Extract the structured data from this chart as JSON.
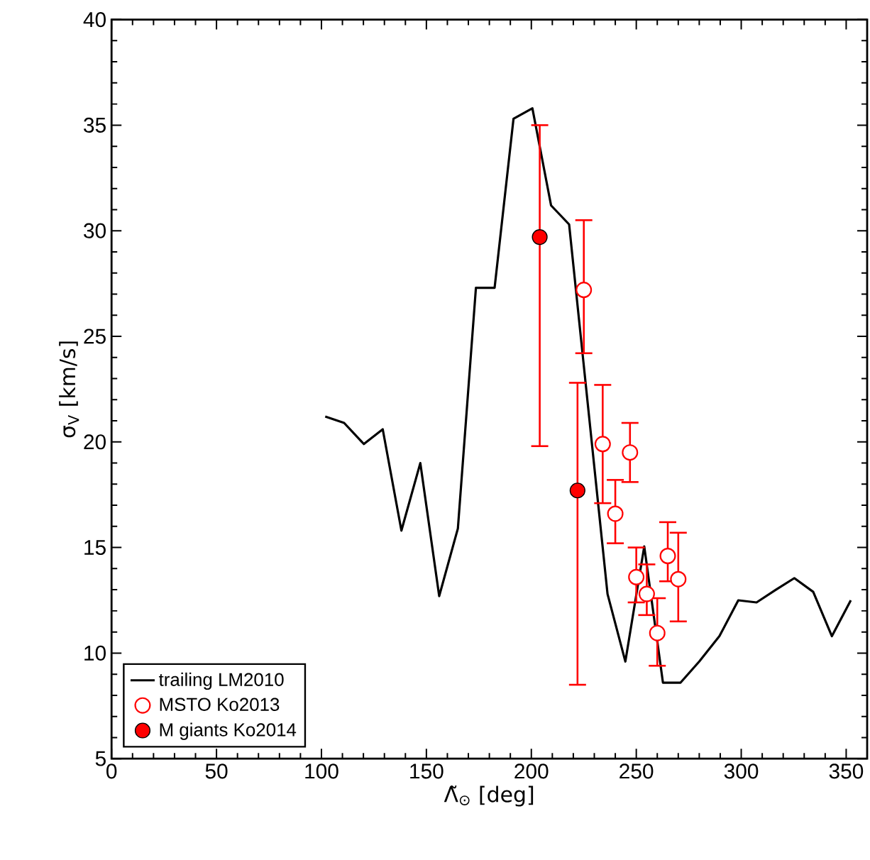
{
  "chart_data": {
    "type": "scatter",
    "xlabel": "Λ̃$_{⊙}$ [deg]",
    "ylabel": "σ$_{V}$ [km/s]",
    "xlim": [
      0,
      360
    ],
    "xticks": [
      0,
      50,
      100,
      150,
      200,
      250,
      300,
      350
    ],
    "ylim": [
      5,
      40
    ],
    "yticks": [
      5,
      10,
      15,
      20,
      25,
      30,
      35,
      40
    ],
    "grid": false,
    "legend": "bottom left",
    "series": [
      {
        "name": "trailing LM2010",
        "type": "line",
        "color": "#000000",
        "marker": "none",
        "line_style": "solid",
        "x": [
          101.8,
          110.8,
          120.2,
          129.2,
          138.1,
          147.1,
          156.1,
          165.0,
          173.6,
          182.5,
          191.5,
          200.5,
          209.4,
          218.0,
          236.3,
          244.8,
          253.8,
          262.7,
          271.1,
          280.0,
          289.6,
          298.6,
          307.3,
          316.5,
          325.3,
          334.3,
          343.2,
          352.2
        ],
        "values": [
          21.2,
          20.9,
          19.9,
          20.6,
          15.8,
          19.0,
          12.7,
          15.9,
          27.3,
          27.3,
          35.3,
          35.8,
          31.2,
          30.3,
          12.8,
          9.6,
          15.05,
          8.6,
          8.6,
          9.6,
          10.8,
          12.5,
          12.4,
          13.0,
          13.55,
          12.9,
          10.8,
          12.5
        ]
      },
      {
        "name": "MSTO Ko2013",
        "color": "#ff0000",
        "marker": "circle",
        "x": [
          225,
          234,
          240,
          247,
          250,
          255,
          260,
          265,
          270
        ],
        "values": [
          27.2,
          19.9,
          16.6,
          19.5,
          13.6,
          12.8,
          10.95,
          14.6,
          13.5
        ],
        "errors": [
          [
            24.2,
            30.5
          ],
          [
            17.1,
            22.7
          ],
          [
            15.2,
            18.2
          ],
          [
            18.1,
            20.9
          ],
          [
            12.4,
            15.0
          ],
          [
            11.8,
            14.2
          ],
          [
            9.4,
            12.6
          ],
          [
            13.4,
            16.2
          ],
          [
            11.5,
            15.7
          ]
        ]
      },
      {
        "name": "M giants Ko2014",
        "color": "#ff0000",
        "marker": "circle",
        "x": [
          204,
          222
        ],
        "values": [
          29.7,
          17.7
        ],
        "errors": [
          [
            19.8,
            35.0
          ],
          [
            8.5,
            22.8
          ]
        ]
      }
    ]
  }
}
